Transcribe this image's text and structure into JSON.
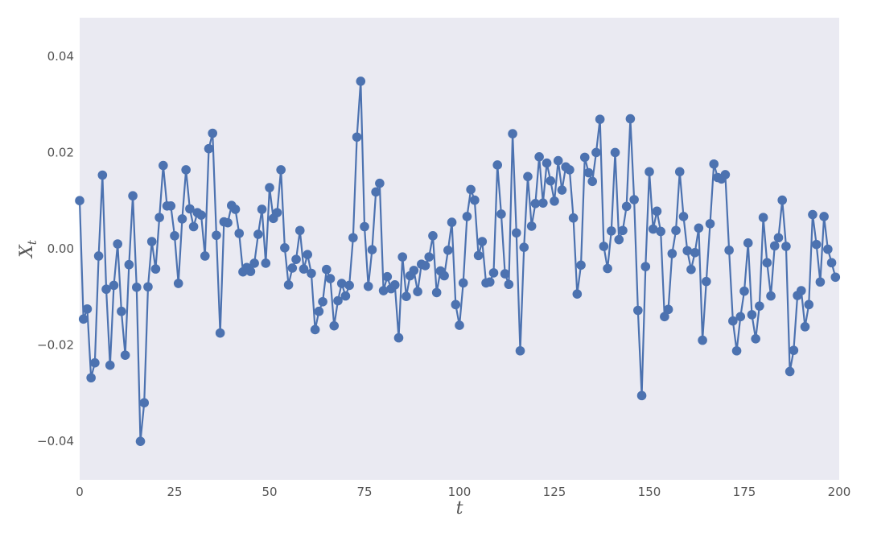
{
  "colors": {
    "plot_background": "#eaeaf2",
    "series": "#4c72b0",
    "tick_text": "#555555"
  },
  "chart_data": {
    "type": "line",
    "title": "",
    "xlabel": "t",
    "ylabel_main": "X",
    "ylabel_sub": "t",
    "xlim": [
      0,
      200
    ],
    "ylim": [
      -0.048,
      0.048
    ],
    "grid": false,
    "markers": true,
    "x_ticks": [
      0,
      25,
      50,
      75,
      100,
      125,
      150,
      175,
      200
    ],
    "x_tick_labels": [
      "0",
      "25",
      "50",
      "75",
      "100",
      "125",
      "150",
      "175",
      "200"
    ],
    "y_ticks": [
      -0.04,
      -0.02,
      0.0,
      0.02,
      0.04
    ],
    "y_tick_labels": [
      "−0.04",
      "−0.02",
      "0.00",
      "0.02",
      "0.04"
    ],
    "series": [
      {
        "values": [
          0.01,
          -0.0146,
          -0.0125,
          -0.0268,
          -0.0237,
          -0.0015,
          0.0153,
          -0.0084,
          -0.0242,
          -0.0076,
          0.001,
          -0.013,
          -0.0221,
          -0.0033,
          0.011,
          -0.008,
          -0.04,
          -0.032,
          -0.0079,
          0.0015,
          -0.0042,
          0.0065,
          0.0173,
          0.0089,
          0.0089,
          0.0027,
          -0.0072,
          0.0062,
          0.0164,
          0.0083,
          0.0046,
          0.0075,
          0.007,
          -0.0015,
          0.0208,
          0.024,
          0.0028,
          -0.0175,
          0.0056,
          0.0054,
          0.009,
          0.0082,
          0.0032,
          -0.0048,
          -0.0039,
          -0.0047,
          -0.003,
          0.003,
          0.0082,
          -0.003,
          0.0127,
          0.0063,
          0.0075,
          0.0164,
          0.0002,
          -0.0075,
          -0.004,
          -0.0022,
          0.0038,
          -0.0042,
          -0.0012,
          -0.0051,
          -0.0168,
          -0.013,
          -0.011,
          -0.0043,
          -0.0062,
          -0.016,
          -0.0108,
          -0.0072,
          -0.0098,
          -0.0076,
          0.0023,
          0.0232,
          0.0348,
          0.0046,
          -0.0078,
          -0.0002,
          0.0118,
          0.0136,
          -0.0087,
          -0.0058,
          -0.0083,
          -0.0075,
          -0.0185,
          -0.0017,
          -0.0099,
          -0.0056,
          -0.0045,
          -0.0089,
          -0.0032,
          -0.0035,
          -0.0017,
          0.0027,
          -0.0091,
          -0.0046,
          -0.0056,
          -0.0003,
          0.0055,
          -0.0116,
          -0.0159,
          -0.0071,
          0.0067,
          0.0123,
          0.0101,
          -0.0014,
          0.0015,
          -0.0071,
          -0.0069,
          -0.005,
          0.0174,
          0.0072,
          -0.0052,
          -0.0074,
          0.0239,
          0.0033,
          -0.0212,
          0.0003,
          0.015,
          0.0047,
          0.0094,
          0.0191,
          0.0095,
          0.0178,
          0.0141,
          0.0099,
          0.0183,
          0.0122,
          0.017,
          0.0164,
          0.0064,
          -0.0094,
          -0.0034,
          0.019,
          0.0158,
          0.014,
          0.02,
          0.0269,
          0.0005,
          -0.0041,
          0.0037,
          0.02,
          0.0019,
          0.0038,
          0.0088,
          0.027,
          0.0102,
          -0.0128,
          -0.0305,
          -0.0037,
          0.016,
          0.0041,
          0.0078,
          0.0036,
          -0.0141,
          -0.0126,
          -0.001,
          0.0038,
          0.016,
          0.0067,
          -0.0004,
          -0.0043,
          -0.0008,
          0.0043,
          -0.019,
          -0.0068,
          0.0052,
          0.0176,
          0.0148,
          0.0145,
          0.0154,
          -0.0003,
          -0.015,
          -0.0212,
          -0.0141,
          -0.0088,
          0.0012,
          -0.0137,
          -0.0187,
          -0.0119,
          0.0065,
          -0.0029,
          -0.0098,
          0.0006,
          0.0023,
          0.0101,
          0.0005,
          -0.0255,
          -0.0211,
          -0.0097,
          -0.0087,
          -0.0162,
          -0.0116,
          0.0071,
          0.0009,
          -0.0069,
          0.0067,
          -0.0001,
          -0.0029,
          -0.0059
        ]
      }
    ]
  }
}
